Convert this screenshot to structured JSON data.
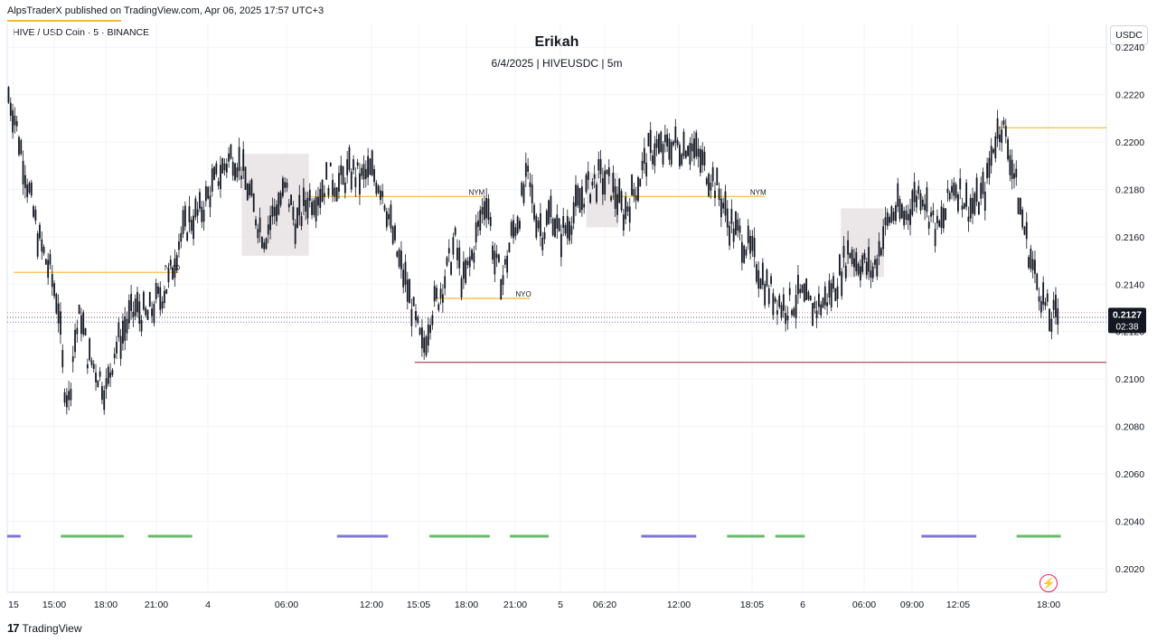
{
  "header": {
    "publish_text": "AlpsTraderX published on TradingView.com, Apr 06, 2025 17:57 UTC+3",
    "symbol": "HIVE / USD Coin · 5 · BINANCE",
    "currency": "USDC"
  },
  "footer": {
    "brand": "TradingView",
    "logo_text": "17"
  },
  "colors": {
    "candle": "#131722",
    "session_line": "#f7b733",
    "low_line": "#a0203e",
    "box": "#e8e2e4",
    "kill_blue": "#7e76d6",
    "kill_green": "#66bb6a",
    "grid": "#f0f3fa",
    "price_badge": "#131722"
  },
  "chart_data": {
    "type": "candlestick",
    "title": "Erikah",
    "subtitle": "6/4/2025 | HIVEUSDC | 5m",
    "ylim": [
      0.201,
      0.225
    ],
    "y_ticks": [
      "0.2240",
      "0.2220",
      "0.2200",
      "0.2180",
      "0.2160",
      "0.2140",
      "0.2120",
      "0.2100",
      "0.2080",
      "0.2060",
      "0.2040",
      "0.2020"
    ],
    "x_ticks": [
      "15",
      "15:00",
      "18:00",
      "21:00",
      "4",
      "06:00",
      "12:00",
      "15:05",
      "18:00",
      "21:00",
      "5",
      "06:20",
      "12:00",
      "18:05",
      "6",
      "06:00",
      "09:00",
      "12:05",
      "18:00"
    ],
    "current_price": "0.2127",
    "countdown": "02:38",
    "price_path": [
      [
        0.0,
        0.2222
      ],
      [
        0.5,
        0.2212
      ],
      [
        1.0,
        0.2198
      ],
      [
        1.6,
        0.218
      ],
      [
        2.4,
        0.2158
      ],
      [
        3.2,
        0.2145
      ],
      [
        3.8,
        0.2132
      ],
      [
        4.2,
        0.21
      ],
      [
        4.6,
        0.209
      ],
      [
        5.0,
        0.2115
      ],
      [
        5.5,
        0.2128
      ],
      [
        6.0,
        0.211
      ],
      [
        6.8,
        0.2102
      ],
      [
        7.4,
        0.2095
      ],
      [
        8.0,
        0.2112
      ],
      [
        8.8,
        0.2122
      ],
      [
        9.6,
        0.213
      ],
      [
        10.4,
        0.2126
      ],
      [
        11.2,
        0.2133
      ],
      [
        12.0,
        0.214
      ],
      [
        12.8,
        0.2158
      ],
      [
        13.6,
        0.2167
      ],
      [
        14.4,
        0.217
      ],
      [
        15.2,
        0.218
      ],
      [
        16.0,
        0.2188
      ],
      [
        16.8,
        0.2195
      ],
      [
        17.4,
        0.219
      ],
      [
        18.0,
        0.218
      ],
      [
        18.6,
        0.2168
      ],
      [
        19.2,
        0.216
      ],
      [
        20.0,
        0.2172
      ],
      [
        20.8,
        0.218
      ],
      [
        21.6,
        0.2165
      ],
      [
        22.4,
        0.2176
      ],
      [
        23.2,
        0.2178
      ],
      [
        24.0,
        0.2185
      ],
      [
        24.8,
        0.2182
      ],
      [
        25.6,
        0.2188
      ],
      [
        26.4,
        0.2184
      ],
      [
        27.2,
        0.2188
      ],
      [
        28.0,
        0.218
      ],
      [
        28.6,
        0.2165
      ],
      [
        29.2,
        0.215
      ],
      [
        29.8,
        0.214
      ],
      [
        30.4,
        0.2125
      ],
      [
        31.0,
        0.2112
      ],
      [
        31.6,
        0.2128
      ],
      [
        32.2,
        0.2135
      ],
      [
        32.8,
        0.2145
      ],
      [
        33.4,
        0.2158
      ],
      [
        34.0,
        0.214
      ],
      [
        34.6,
        0.215
      ],
      [
        35.2,
        0.2165
      ],
      [
        35.8,
        0.2178
      ],
      [
        36.4,
        0.2148
      ],
      [
        37.0,
        0.2142
      ],
      [
        37.6,
        0.216
      ],
      [
        38.2,
        0.217
      ],
      [
        38.8,
        0.2185
      ],
      [
        39.4,
        0.217
      ],
      [
        40.0,
        0.2162
      ],
      [
        40.6,
        0.2172
      ],
      [
        41.2,
        0.216
      ],
      [
        41.8,
        0.2165
      ],
      [
        42.4,
        0.2172
      ],
      [
        43.0,
        0.2178
      ],
      [
        43.6,
        0.2182
      ],
      [
        44.2,
        0.2185
      ],
      [
        44.8,
        0.2183
      ],
      [
        45.4,
        0.2178
      ],
      [
        46.0,
        0.217
      ],
      [
        46.6,
        0.2177
      ],
      [
        47.2,
        0.2185
      ],
      [
        47.8,
        0.2195
      ],
      [
        48.4,
        0.2198
      ],
      [
        49.0,
        0.2196
      ],
      [
        49.6,
        0.22
      ],
      [
        50.2,
        0.2198
      ],
      [
        50.8,
        0.22
      ],
      [
        51.4,
        0.2195
      ],
      [
        52.0,
        0.219
      ],
      [
        52.6,
        0.2185
      ],
      [
        53.2,
        0.2177
      ],
      [
        53.8,
        0.2167
      ],
      [
        54.4,
        0.2162
      ],
      [
        55.0,
        0.2158
      ],
      [
        55.6,
        0.2152
      ],
      [
        56.2,
        0.2145
      ],
      [
        56.8,
        0.2138
      ],
      [
        57.4,
        0.2134
      ],
      [
        58.0,
        0.213
      ],
      [
        58.6,
        0.2132
      ],
      [
        59.2,
        0.2135
      ],
      [
        59.8,
        0.2131
      ],
      [
        60.4,
        0.213
      ],
      [
        61.0,
        0.2133
      ],
      [
        61.6,
        0.2138
      ],
      [
        62.2,
        0.2145
      ],
      [
        62.8,
        0.2155
      ],
      [
        63.4,
        0.215
      ],
      [
        64.0,
        0.2148
      ],
      [
        64.6,
        0.2145
      ],
      [
        65.2,
        0.2158
      ],
      [
        65.8,
        0.2168
      ],
      [
        66.4,
        0.2172
      ],
      [
        67.0,
        0.2168
      ],
      [
        67.6,
        0.2176
      ],
      [
        68.2,
        0.218
      ],
      [
        68.8,
        0.217
      ],
      [
        69.4,
        0.2162
      ],
      [
        70.0,
        0.217
      ],
      [
        70.6,
        0.2183
      ],
      [
        71.2,
        0.2178
      ],
      [
        71.8,
        0.2172
      ],
      [
        72.4,
        0.2175
      ],
      [
        73.0,
        0.218
      ],
      [
        73.6,
        0.22
      ],
      [
        74.2,
        0.2208
      ],
      [
        74.8,
        0.2195
      ],
      [
        75.4,
        0.2178
      ],
      [
        76.0,
        0.216
      ],
      [
        76.6,
        0.2145
      ],
      [
        77.2,
        0.2135
      ],
      [
        77.8,
        0.2125
      ],
      [
        78.4,
        0.2127
      ]
    ],
    "session_levels": [
      {
        "label": "NYO",
        "price": 0.2145,
        "x_start": 0.5,
        "x_end": 12.8
      },
      {
        "label": "NYM",
        "price": 0.2177,
        "x_start": 22.5,
        "x_end": 35.5
      },
      {
        "label": "NYO",
        "price": 0.2134,
        "x_start": 31.8,
        "x_end": 39.0
      },
      {
        "label": "NYM",
        "price": 0.2177,
        "x_start": 45.0,
        "x_end": 56.5
      },
      {
        "label": "",
        "price": 0.2206,
        "x_start": 73.8,
        "x_end": 82.0
      }
    ],
    "low_level": {
      "price": 0.2107,
      "x_start": 30.4,
      "x_end": 82.0
    },
    "current_lines": [
      0.2128,
      0.2126,
      0.2124
    ],
    "boxes": [
      {
        "x_start": 17.5,
        "x_end": 22.5,
        "top": 0.2195,
        "bottom": 0.2152
      },
      {
        "x_start": 43.2,
        "x_end": 45.6,
        "top": 0.2187,
        "bottom": 0.2164
      },
      {
        "x_start": 62.2,
        "x_end": 65.4,
        "top": 0.2172,
        "bottom": 0.2143
      }
    ],
    "kill_zones": [
      {
        "color": "blue",
        "x_start": 0.0,
        "x_end": 1.0
      },
      {
        "color": "green",
        "x_start": 4.0,
        "x_end": 8.7
      },
      {
        "color": "green",
        "x_start": 10.5,
        "x_end": 13.8
      },
      {
        "color": "blue",
        "x_start": 24.6,
        "x_end": 28.4
      },
      {
        "color": "green",
        "x_start": 31.5,
        "x_end": 36.0
      },
      {
        "color": "green",
        "x_start": 37.5,
        "x_end": 40.4
      },
      {
        "color": "blue",
        "x_start": 47.3,
        "x_end": 51.4
      },
      {
        "color": "green",
        "x_start": 53.7,
        "x_end": 56.5
      },
      {
        "color": "green",
        "x_start": 57.3,
        "x_end": 59.5
      },
      {
        "color": "blue",
        "x_start": 68.2,
        "x_end": 72.3
      },
      {
        "color": "green",
        "x_start": 75.3,
        "x_end": 78.6
      }
    ]
  }
}
